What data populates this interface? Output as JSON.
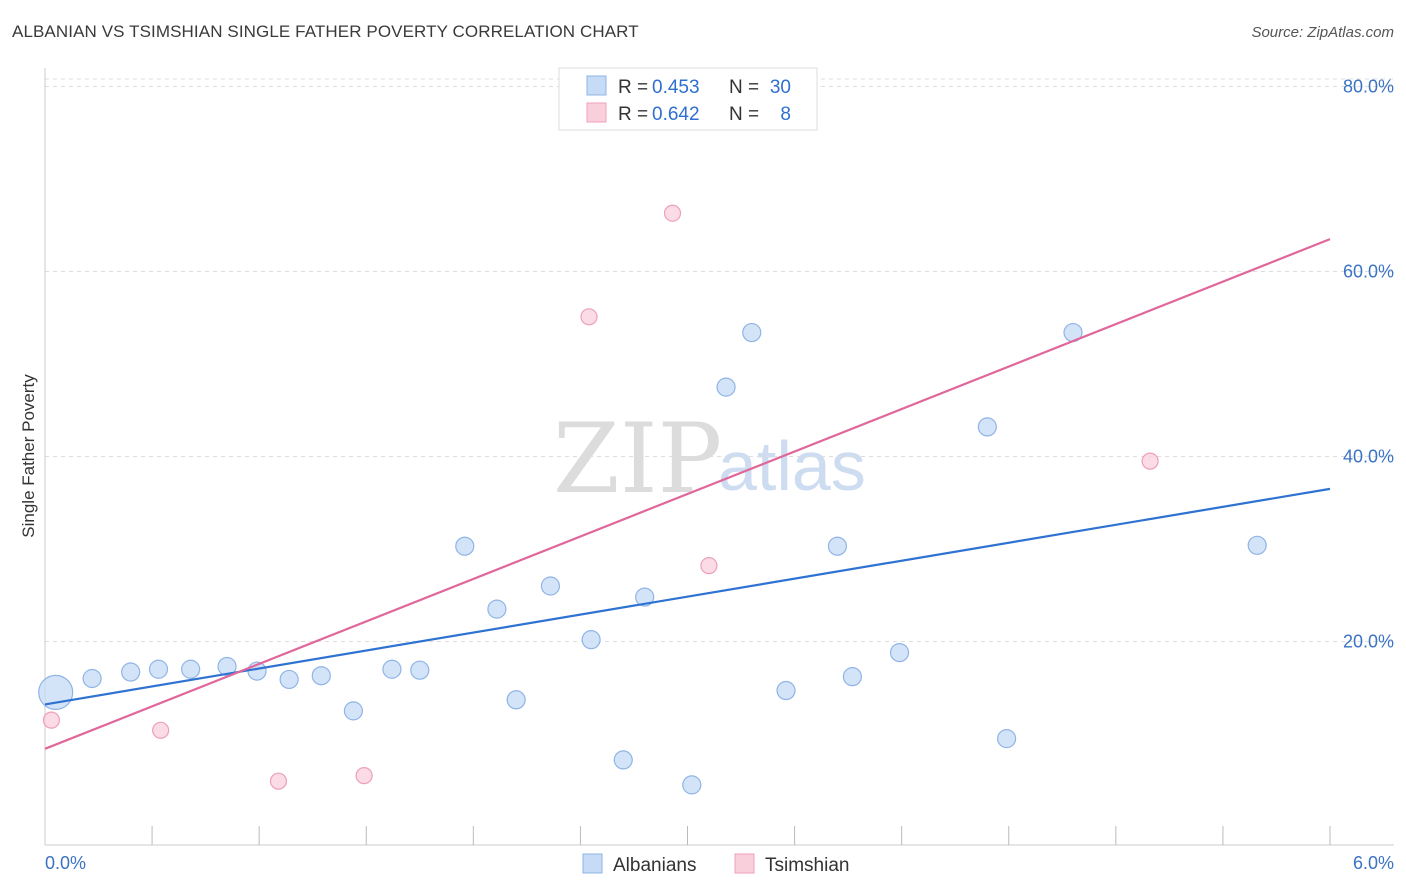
{
  "title": "ALBANIAN VS TSIMSHIAN SINGLE FATHER POVERTY CORRELATION CHART",
  "source": "Source: ZipAtlas.com",
  "watermark": {
    "zip": "ZIP",
    "atlas": "atlas"
  },
  "colors": {
    "albanians_fill": "#c6dbf5",
    "albanians_stroke": "#8fb4e6",
    "albanians_line": "#2e72d2",
    "tsimshian_fill": "#f9cfdc",
    "tsimshian_stroke": "#eea0b8",
    "tsimshian_line": "#e0679a",
    "grid": "#dddddd",
    "axis_text": "#3b73c4"
  },
  "legend": {
    "rows": [
      {
        "r_label": "R =",
        "r_value": "0.453",
        "n_label": "N =",
        "n_value": "30"
      },
      {
        "r_label": "R =",
        "r_value": "0.642",
        "n_label": "N =",
        "n_value": "8"
      }
    ]
  },
  "chart_data": {
    "type": "scatter",
    "title": "ALBANIAN VS TSIMSHIAN SINGLE FATHER POVERTY CORRELATION CHART",
    "xlabel": "",
    "ylabel": "Single Father Poverty",
    "xlim": [
      0,
      6
    ],
    "ylim": [
      -2,
      82
    ],
    "x_tick_labels": [
      "0.0%",
      "6.0%"
    ],
    "y_ticks": [
      20,
      40,
      60,
      80
    ],
    "y_tick_labels": [
      "20.0%",
      "40.0%",
      "60.0%",
      "80.0%"
    ],
    "series": [
      {
        "name": "Albanians",
        "r": 0.453,
        "n": 30,
        "trend": {
          "x0": 0,
          "y0": 13.2,
          "x1": 6,
          "y1": 36.5
        },
        "points": [
          {
            "x": 0.05,
            "y": 14.5,
            "size": 3
          },
          {
            "x": 0.22,
            "y": 16.0,
            "size": 1
          },
          {
            "x": 0.4,
            "y": 16.7,
            "size": 1
          },
          {
            "x": 0.53,
            "y": 17.0,
            "size": 1
          },
          {
            "x": 0.68,
            "y": 17.0,
            "size": 1
          },
          {
            "x": 0.85,
            "y": 17.3,
            "size": 1
          },
          {
            "x": 0.99,
            "y": 16.8,
            "size": 1
          },
          {
            "x": 1.14,
            "y": 15.9,
            "size": 1
          },
          {
            "x": 1.29,
            "y": 16.3,
            "size": 1
          },
          {
            "x": 1.44,
            "y": 12.5,
            "size": 1
          },
          {
            "x": 1.62,
            "y": 17.0,
            "size": 1
          },
          {
            "x": 1.75,
            "y": 16.9,
            "size": 1
          },
          {
            "x": 1.96,
            "y": 30.3,
            "size": 1
          },
          {
            "x": 2.11,
            "y": 23.5,
            "size": 1
          },
          {
            "x": 2.2,
            "y": 13.7,
            "size": 1
          },
          {
            "x": 2.36,
            "y": 26.0,
            "size": 1
          },
          {
            "x": 2.55,
            "y": 20.2,
            "size": 1
          },
          {
            "x": 2.7,
            "y": 7.2,
            "size": 1
          },
          {
            "x": 2.8,
            "y": 24.8,
            "size": 1
          },
          {
            "x": 3.02,
            "y": 4.5,
            "size": 1
          },
          {
            "x": 3.18,
            "y": 47.5,
            "size": 1
          },
          {
            "x": 3.3,
            "y": 53.4,
            "size": 1
          },
          {
            "x": 3.46,
            "y": 14.7,
            "size": 1
          },
          {
            "x": 3.7,
            "y": 30.3,
            "size": 1
          },
          {
            "x": 3.77,
            "y": 16.2,
            "size": 1
          },
          {
            "x": 3.99,
            "y": 18.8,
            "size": 1
          },
          {
            "x": 4.4,
            "y": 43.2,
            "size": 1
          },
          {
            "x": 4.49,
            "y": 9.5,
            "size": 1
          },
          {
            "x": 4.8,
            "y": 53.4,
            "size": 1
          },
          {
            "x": 5.66,
            "y": 30.4,
            "size": 1
          }
        ]
      },
      {
        "name": "Tsimshian",
        "r": 0.642,
        "n": 8,
        "trend": {
          "x0": 0,
          "y0": 8.4,
          "x1": 6,
          "y1": 63.5
        },
        "points": [
          {
            "x": 0.03,
            "y": 11.5
          },
          {
            "x": 0.54,
            "y": 10.4
          },
          {
            "x": 1.09,
            "y": 4.9
          },
          {
            "x": 1.49,
            "y": 5.5
          },
          {
            "x": 2.54,
            "y": 55.1
          },
          {
            "x": 2.93,
            "y": 66.3
          },
          {
            "x": 3.1,
            "y": 28.2
          },
          {
            "x": 5.16,
            "y": 39.5
          }
        ]
      }
    ],
    "legend_position": "top-center",
    "bottom_legend": [
      "Albanians",
      "Tsimshian"
    ]
  }
}
